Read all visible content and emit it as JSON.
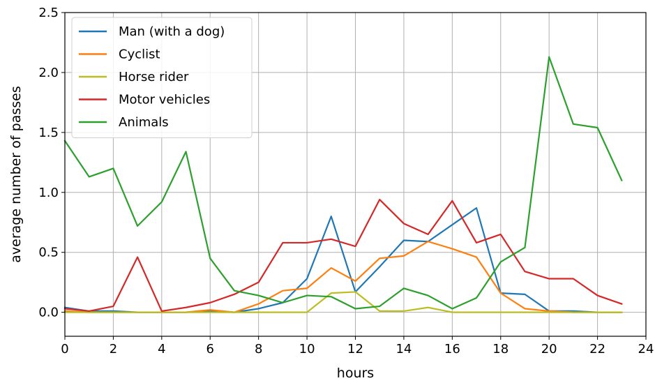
{
  "chart_data": {
    "type": "line",
    "xlabel": "hours",
    "ylabel": "average number of passes",
    "xlim": [
      0,
      24
    ],
    "ylim": [
      -0.2,
      2.5
    ],
    "xticks": [
      0,
      2,
      4,
      6,
      8,
      10,
      12,
      14,
      16,
      18,
      20,
      22,
      24
    ],
    "yticks": [
      0.0,
      0.5,
      1.0,
      1.5,
      2.0,
      2.5
    ],
    "xtick_labels": [
      "0",
      "2",
      "4",
      "6",
      "8",
      "10",
      "12",
      "14",
      "16",
      "18",
      "20",
      "22",
      "24"
    ],
    "ytick_labels": [
      "0.0",
      "0.5",
      "1.0",
      "1.5",
      "2.0",
      "2.5"
    ],
    "grid": true,
    "legend_position": "top-left",
    "x": [
      0,
      1,
      2,
      3,
      4,
      5,
      6,
      7,
      8,
      9,
      10,
      11,
      12,
      13,
      14,
      15,
      16,
      17,
      18,
      19,
      20,
      21,
      22,
      23
    ],
    "series": [
      {
        "name": "Man (with a dog)",
        "color": "#1f77b4",
        "values": [
          0.04,
          0.01,
          0.01,
          0.0,
          0.0,
          0.0,
          0.01,
          0.0,
          0.03,
          0.08,
          0.28,
          0.8,
          0.17,
          0.38,
          0.6,
          0.59,
          0.73,
          0.87,
          0.16,
          0.15,
          0.01,
          0.01,
          0.0,
          0.0
        ]
      },
      {
        "name": "Cyclist",
        "color": "#ff7f0e",
        "values": [
          0.01,
          0.0,
          0.0,
          0.0,
          0.0,
          0.0,
          0.02,
          0.0,
          0.07,
          0.18,
          0.2,
          0.37,
          0.26,
          0.45,
          0.47,
          0.59,
          0.53,
          0.46,
          0.16,
          0.03,
          0.01,
          0.0,
          0.0,
          0.0
        ]
      },
      {
        "name": "Horse rider",
        "color": "#bcbd22",
        "values": [
          0.0,
          0.0,
          0.0,
          0.0,
          0.0,
          0.0,
          0.0,
          0.0,
          0.0,
          0.0,
          0.0,
          0.16,
          0.17,
          0.01,
          0.01,
          0.04,
          0.0,
          0.0,
          0.0,
          0.0,
          0.0,
          0.0,
          0.0,
          0.0
        ]
      },
      {
        "name": "Motor vehicles",
        "color": "#d62728",
        "values": [
          0.03,
          0.01,
          0.05,
          0.46,
          0.01,
          0.04,
          0.08,
          0.15,
          0.25,
          0.58,
          0.58,
          0.61,
          0.55,
          0.94,
          0.74,
          0.65,
          0.93,
          0.58,
          0.65,
          0.34,
          0.28,
          0.28,
          0.14,
          0.07
        ]
      },
      {
        "name": "Animals",
        "color": "#2ca02c",
        "values": [
          1.43,
          1.13,
          1.2,
          0.72,
          0.92,
          1.34,
          0.45,
          0.18,
          0.14,
          0.08,
          0.14,
          0.13,
          0.03,
          0.05,
          0.2,
          0.14,
          0.03,
          0.12,
          0.42,
          0.54,
          2.13,
          1.57,
          1.54,
          1.1
        ]
      }
    ]
  }
}
